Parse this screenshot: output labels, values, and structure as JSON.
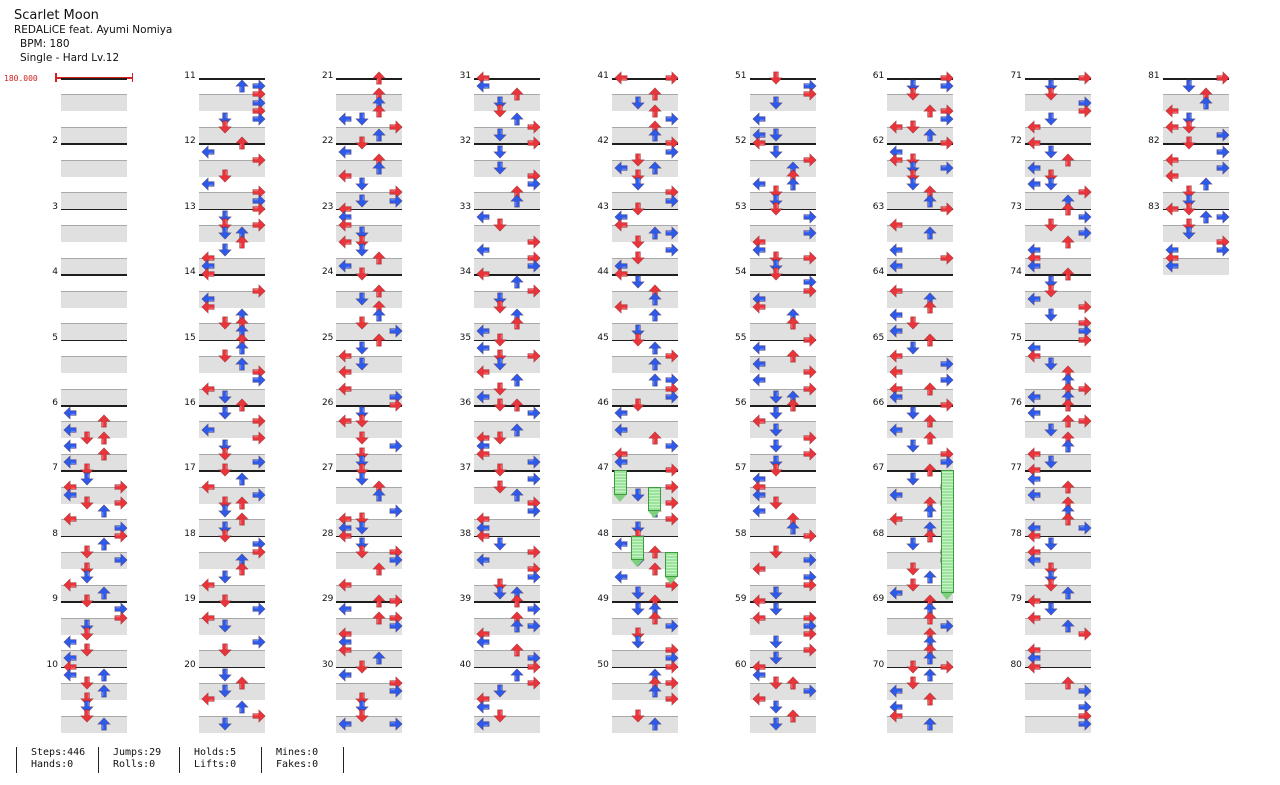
{
  "song": {
    "title": "Scarlet Moon",
    "artist": "REDALiCE feat. Ayumi Nomiya",
    "bpm_label": "BPM: 180",
    "difficulty": "Single - Hard  Lv.12",
    "bpm_marker": "180.000"
  },
  "chart": {
    "measure_count": 83,
    "measures_per_column": 10,
    "holds": [
      {
        "start_measure": 47,
        "start_beat": 0,
        "column": 0,
        "length_beats": 1.5
      },
      {
        "start_measure": 47,
        "start_beat": 1,
        "column": 2,
        "length_beats": 1.5
      },
      {
        "start_measure": 48,
        "start_beat": 0,
        "column": 1,
        "length_beats": 1.5
      },
      {
        "start_measure": 48,
        "start_beat": 1,
        "column": 3,
        "length_beats": 1.5
      },
      {
        "start_measure": 67,
        "start_beat": 0,
        "column": 3,
        "length_beats": 7.5
      }
    ]
  },
  "stats": {
    "steps": "Steps:446",
    "hands": "Hands:0",
    "jumps": "Jumps:29",
    "rolls": "Rolls:0",
    "holds": "Holds:5",
    "lifts": "Lifts:0",
    "mines": "Mines:0",
    "fakes": "Fakes:0"
  },
  "colors": {
    "quarter_note": "#e8343a",
    "eighth_note": "#2d5ae8",
    "sixteenth_note": "#f0d020",
    "hold_body": "#9be29b",
    "separator": "#e0e0e0",
    "bpm_marker": "#d42020"
  }
}
